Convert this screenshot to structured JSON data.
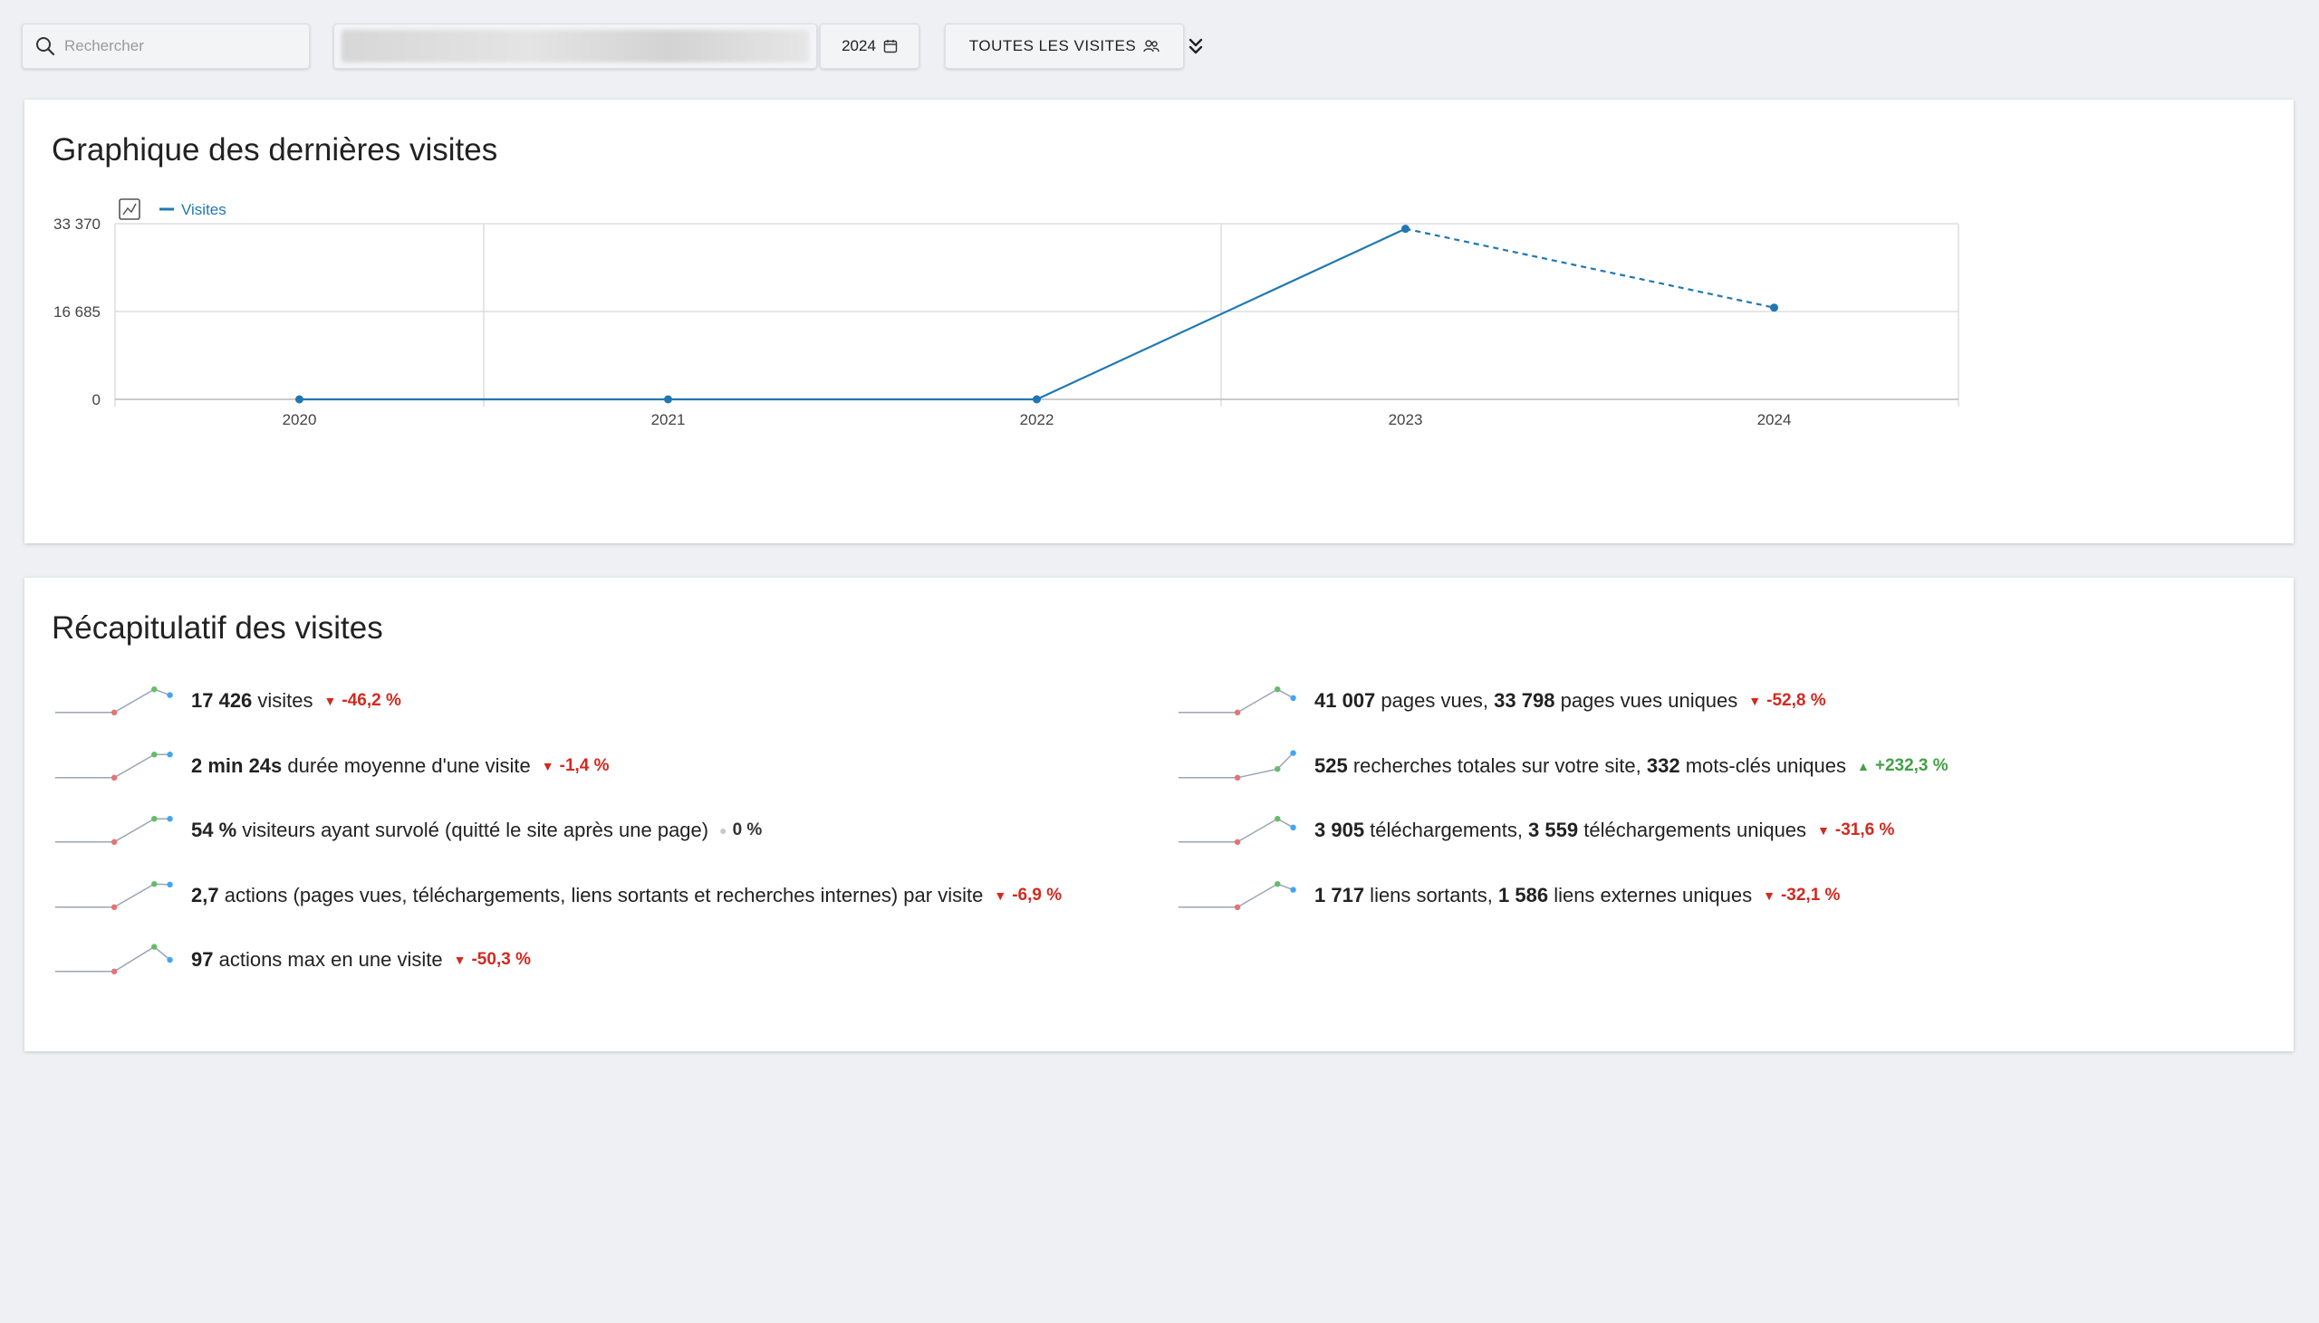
{
  "toolbar": {
    "search_placeholder": "Rechercher",
    "period_label": "2024",
    "segment_label": "TOUTES LES VISITES"
  },
  "chart_card": {
    "title": "Graphique des dernières visites",
    "legend_series": "Visites"
  },
  "chart_data": {
    "type": "line",
    "x": [
      "2020",
      "2021",
      "2022",
      "2023",
      "2024"
    ],
    "series": [
      {
        "name": "Visites",
        "values": [
          0,
          0,
          0,
          32400,
          17426
        ]
      }
    ],
    "ylim": [
      0,
      33370
    ],
    "y_ticks": [
      "0",
      "16 685",
      "33 370"
    ],
    "last_segment_dashed": true,
    "grid": true,
    "color": "#1f78b4"
  },
  "summary_card": {
    "title": "Récapitulatif des visites"
  },
  "summary": {
    "left": [
      {
        "parts": [
          {
            "b": "17 426"
          },
          {
            "t": " visites"
          }
        ],
        "trend": "-46,2 %",
        "dir": "down",
        "spark": [
          0.1,
          0.1,
          0.1,
          0.9,
          0.7
        ]
      },
      {
        "parts": [
          {
            "b": "2 min 24s"
          },
          {
            "t": " durée moyenne d'une visite"
          }
        ],
        "trend": "-1,4 %",
        "dir": "down",
        "spark": [
          0.1,
          0.1,
          0.1,
          0.9,
          0.9
        ]
      },
      {
        "parts": [
          {
            "b": "54 %"
          },
          {
            "t": " visiteurs ayant survolé (quitté le site après une page)"
          }
        ],
        "trend": "0 %",
        "dir": "flat",
        "spark": [
          0.1,
          0.1,
          0.1,
          0.9,
          0.9
        ]
      },
      {
        "parts": [
          {
            "b": "2,7"
          },
          {
            "t": " actions (pages vues, téléchargements, liens sortants et recherches internes) par visite"
          }
        ],
        "trend": "-6,9 %",
        "dir": "down",
        "spark": [
          0.1,
          0.1,
          0.1,
          0.9,
          0.88
        ]
      },
      {
        "parts": [
          {
            "b": "97"
          },
          {
            "t": " actions max en une visite"
          }
        ],
        "trend": "-50,3 %",
        "dir": "down",
        "spark": [
          0.1,
          0.1,
          0.1,
          0.95,
          0.5
        ]
      }
    ],
    "right": [
      {
        "parts": [
          {
            "b": "41 007"
          },
          {
            "t": " pages vues, "
          },
          {
            "b": "33 798"
          },
          {
            "t": " pages vues uniques"
          }
        ],
        "trend": "-52,8 %",
        "dir": "down",
        "spark": [
          0.1,
          0.1,
          0.1,
          0.9,
          0.6
        ]
      },
      {
        "parts": [
          {
            "b": "525"
          },
          {
            "t": " recherches totales sur votre site, "
          },
          {
            "b": "332"
          },
          {
            "t": " mots-clés uniques"
          }
        ],
        "trend": "+232,3 %",
        "dir": "up",
        "spark": [
          0.1,
          0.1,
          0.1,
          0.4,
          0.95
        ]
      },
      {
        "parts": [
          {
            "b": "3 905"
          },
          {
            "t": " téléchargements, "
          },
          {
            "b": "3 559"
          },
          {
            "t": " téléchargements uniques"
          }
        ],
        "trend": "-31,6 %",
        "dir": "down",
        "spark": [
          0.1,
          0.1,
          0.1,
          0.9,
          0.6
        ]
      },
      {
        "parts": [
          {
            "b": "1 717"
          },
          {
            "t": " liens sortants, "
          },
          {
            "b": "1 586"
          },
          {
            "t": " liens externes uniques"
          }
        ],
        "trend": "-32,1 %",
        "dir": "down",
        "spark": [
          0.1,
          0.1,
          0.1,
          0.9,
          0.7
        ]
      }
    ]
  }
}
